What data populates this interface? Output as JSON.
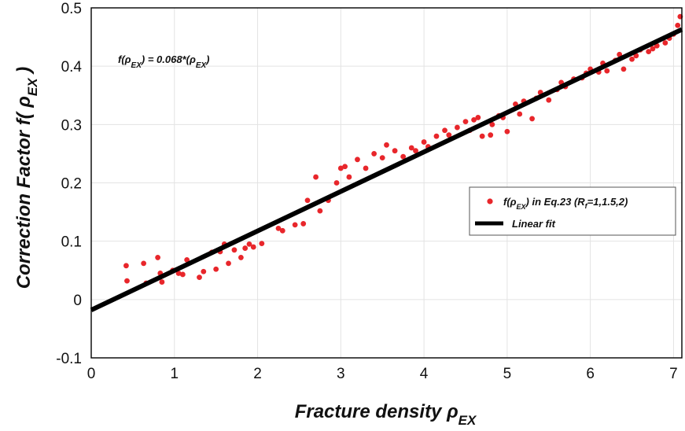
{
  "chart_data": {
    "type": "scatter",
    "xlabel": {
      "main": "Fracture density ρ",
      "sub": "EX"
    },
    "ylabel": {
      "main": "Correction Factor f( ρ",
      "sub": "EX",
      "tail": " )"
    },
    "annotation": {
      "prefix": "f(ρ",
      "sub1": "EX",
      "mid": ") = 0.068*(ρ",
      "sub2": "EX",
      "suffix": ")"
    },
    "xlim": [
      0,
      7.1
    ],
    "ylim": [
      -0.1,
      0.5
    ],
    "x_ticks": [
      "0",
      "1",
      "2",
      "3",
      "4",
      "5",
      "6",
      "7"
    ],
    "y_ticks": [
      "-0.1",
      "0",
      "0.1",
      "0.2",
      "0.3",
      "0.4",
      "0.5"
    ],
    "grid": true,
    "legend_position": "right",
    "colors": {
      "points": "#e8262b",
      "fit": "#000000"
    },
    "series": [
      {
        "name_parts": {
          "pre": "f(ρ",
          "sub1": "EX",
          "mid": ") in Eq.23 (R",
          "sub2": "f",
          "post": "=1,1.5,2)"
        },
        "kind": "scatter",
        "x": [
          0.42,
          0.43,
          0.63,
          0.66,
          0.8,
          0.83,
          0.85,
          0.98,
          1.05,
          1.1,
          1.15,
          1.3,
          1.35,
          1.45,
          1.5,
          1.55,
          1.6,
          1.65,
          1.72,
          1.8,
          1.85,
          1.9,
          1.95,
          2.05,
          2.25,
          2.3,
          2.45,
          2.55,
          2.6,
          2.7,
          2.75,
          2.85,
          2.95,
          3.0,
          3.05,
          3.1,
          3.2,
          3.3,
          3.4,
          3.5,
          3.55,
          3.65,
          3.75,
          3.85,
          3.9,
          4.0,
          4.05,
          4.15,
          4.25,
          4.3,
          4.4,
          4.5,
          4.55,
          4.6,
          4.65,
          4.7,
          4.8,
          4.82,
          4.9,
          4.95,
          5.0,
          5.1,
          5.15,
          5.2,
          5.3,
          5.35,
          5.4,
          5.5,
          5.6,
          5.65,
          5.7,
          5.8,
          5.9,
          5.95,
          6.0,
          6.1,
          6.15,
          6.2,
          6.3,
          6.35,
          6.4,
          6.5,
          6.55,
          6.6,
          6.7,
          6.75,
          6.8,
          6.9,
          6.95,
          7.0,
          7.05,
          7.08
        ],
        "y": [
          0.058,
          0.032,
          0.062,
          0.028,
          0.072,
          0.045,
          0.03,
          0.05,
          0.045,
          0.043,
          0.068,
          0.038,
          0.048,
          0.081,
          0.052,
          0.082,
          0.095,
          0.062,
          0.085,
          0.072,
          0.088,
          0.095,
          0.09,
          0.096,
          0.122,
          0.118,
          0.128,
          0.13,
          0.17,
          0.21,
          0.152,
          0.17,
          0.2,
          0.225,
          0.228,
          0.21,
          0.24,
          0.225,
          0.25,
          0.243,
          0.265,
          0.255,
          0.245,
          0.26,
          0.255,
          0.27,
          0.262,
          0.28,
          0.29,
          0.282,
          0.295,
          0.305,
          0.29,
          0.308,
          0.312,
          0.28,
          0.282,
          0.3,
          0.315,
          0.312,
          0.288,
          0.335,
          0.318,
          0.34,
          0.31,
          0.345,
          0.355,
          0.342,
          0.36,
          0.372,
          0.365,
          0.378,
          0.38,
          0.388,
          0.395,
          0.39,
          0.405,
          0.392,
          0.41,
          0.42,
          0.395,
          0.412,
          0.418,
          0.428,
          0.425,
          0.43,
          0.435,
          0.44,
          0.448,
          0.455,
          0.47,
          0.485
        ]
      },
      {
        "name": "Linear fit",
        "kind": "line",
        "x": [
          0,
          7.1
        ],
        "y": [
          -0.018,
          0.463
        ]
      }
    ]
  }
}
